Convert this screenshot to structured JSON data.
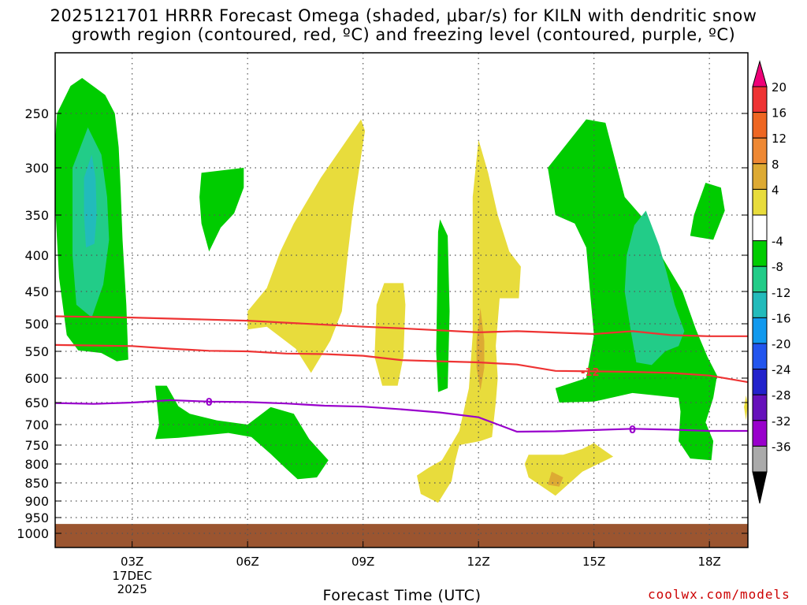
{
  "title_line1": "2025121701 HRRR Forecast Omega (shaded, μbar/s) for KILN with dendritic snow",
  "title_line2": "growth region (contoured, red, ºC) and freezing level (contoured, purple, ºC)",
  "credit": "coolwx.com/models",
  "chart_data": {
    "type": "heatmap",
    "title": "2025121701 HRRR Forecast Omega (shaded, μbar/s) for KILN with dendritic snow growth region (contoured, red, ºC) and freezing level (contoured, purple, ºC)",
    "xlabel": "Forecast Time (UTC)",
    "ylabel": "",
    "x_axis": {
      "range_hours": [
        1,
        19
      ],
      "ticks": [
        {
          "h": 3,
          "label": "03Z",
          "sub": [
            "17DEC",
            "2025"
          ]
        },
        {
          "h": 6,
          "label": "06Z"
        },
        {
          "h": 9,
          "label": "09Z"
        },
        {
          "h": 12,
          "label": "12Z"
        },
        {
          "h": 15,
          "label": "15Z"
        },
        {
          "h": 18,
          "label": "18Z"
        }
      ]
    },
    "y_axis": {
      "unit": "hPa",
      "range": [
        200,
        1030
      ],
      "inverted": true,
      "ticks": [
        250,
        300,
        350,
        400,
        450,
        500,
        550,
        600,
        650,
        700,
        750,
        800,
        850,
        900,
        950,
        1000
      ]
    },
    "grid": true,
    "colorbar": {
      "placement": "right",
      "labels": [
        "20",
        "16",
        "12",
        "8",
        "4",
        "-4",
        "-8",
        "-12",
        "-16",
        "-20",
        "-24",
        "-28",
        "-32",
        "-36"
      ],
      "colors": [
        "#ee0077",
        "#ee3333",
        "#ee6622",
        "#ee8833",
        "#ddaa33",
        "#e8dc3c",
        "#ffffff",
        "#00cc00",
        "#22cc88",
        "#22bbbb",
        "#1199ee",
        "#2255ee",
        "#2222cc",
        "#6611bb",
        "#9900cc",
        "#aaaaaa",
        "#000000"
      ]
    },
    "omega_regions": [
      {
        "name": "green",
        "value": -6,
        "color": "#00cc00",
        "polygons": [
          [
            [
              1.7,
              222
            ],
            [
              2.3,
              235
            ],
            [
              2.55,
              250
            ],
            [
              2.65,
              280
            ],
            [
              2.7,
              320
            ],
            [
              2.75,
              380
            ],
            [
              2.85,
              470
            ],
            [
              2.9,
              565
            ],
            [
              2.6,
              568
            ],
            [
              2.2,
              553
            ],
            [
              1.6,
              548
            ],
            [
              1.3,
              520
            ],
            [
              1.1,
              430
            ],
            [
              0.95,
              300
            ],
            [
              1.05,
              250
            ],
            [
              1.4,
              228
            ]
          ],
          [
            [
              4.8,
              305
            ],
            [
              5.9,
              300
            ],
            [
              5.9,
              320
            ],
            [
              5.65,
              348
            ],
            [
              5.3,
              365
            ],
            [
              5.0,
              395
            ],
            [
              4.8,
              360
            ],
            [
              4.75,
              330
            ]
          ],
          [
            [
              3.6,
              615
            ],
            [
              3.9,
              615
            ],
            [
              4.2,
              658
            ],
            [
              4.5,
              675
            ],
            [
              5.2,
              690
            ],
            [
              6.0,
              700
            ],
            [
              6.6,
              660
            ],
            [
              7.2,
              675
            ],
            [
              7.6,
              735
            ],
            [
              8.1,
              790
            ],
            [
              7.8,
              835
            ],
            [
              7.3,
              840
            ],
            [
              7.0,
              812
            ],
            [
              6.6,
              773
            ],
            [
              6.1,
              730
            ],
            [
              5.5,
              720
            ],
            [
              4.2,
              732
            ],
            [
              3.6,
              735
            ],
            [
              3.7,
              700
            ]
          ],
          [
            [
              10.95,
              370
            ],
            [
              11.0,
              355
            ],
            [
              11.2,
              375
            ],
            [
              11.25,
              480
            ],
            [
              11.2,
              620
            ],
            [
              10.95,
              628
            ],
            [
              10.9,
              550
            ]
          ],
          [
            [
              14.8,
              255
            ],
            [
              15.3,
              258
            ],
            [
              15.8,
              330
            ],
            [
              16.4,
              360
            ],
            [
              16.8,
              405
            ],
            [
              17.3,
              450
            ],
            [
              17.65,
              510
            ],
            [
              17.95,
              560
            ],
            [
              18.2,
              595
            ],
            [
              18.1,
              640
            ],
            [
              17.9,
              695
            ],
            [
              18.1,
              740
            ],
            [
              18.05,
              790
            ],
            [
              17.5,
              785
            ],
            [
              17.2,
              740
            ],
            [
              17.25,
              670
            ],
            [
              17.2,
              640
            ],
            [
              16.0,
              630
            ],
            [
              15.0,
              648
            ],
            [
              14.1,
              650
            ],
            [
              14.0,
              620
            ],
            [
              14.8,
              600
            ],
            [
              15.0,
              520
            ],
            [
              14.9,
              452
            ],
            [
              14.8,
              390
            ],
            [
              14.5,
              360
            ],
            [
              14.0,
              350
            ],
            [
              13.8,
              300
            ]
          ],
          [
            [
              17.9,
              315
            ],
            [
              18.3,
              320
            ],
            [
              18.4,
              345
            ],
            [
              18.1,
              380
            ],
            [
              17.5,
              375
            ],
            [
              17.6,
              350
            ]
          ]
        ]
      },
      {
        "name": "teal",
        "value": -10,
        "color": "#22cc88",
        "polygons": [
          [
            [
              1.85,
              262
            ],
            [
              2.2,
              287
            ],
            [
              2.35,
              330
            ],
            [
              2.4,
              380
            ],
            [
              2.25,
              440
            ],
            [
              1.95,
              490
            ],
            [
              1.55,
              470
            ],
            [
              1.45,
              400
            ],
            [
              1.45,
              300
            ]
          ],
          [
            [
              16.35,
              345
            ],
            [
              16.7,
              388
            ],
            [
              16.9,
              425
            ],
            [
              17.1,
              470
            ],
            [
              17.35,
              513
            ],
            [
              17.2,
              540
            ],
            [
              16.85,
              550
            ],
            [
              16.5,
              575
            ],
            [
              16.1,
              570
            ],
            [
              15.95,
              510
            ],
            [
              15.8,
              450
            ],
            [
              15.85,
              400
            ],
            [
              16.05,
              362
            ]
          ]
        ]
      },
      {
        "name": "cyan",
        "value": -14,
        "color": "#22bbbb",
        "polygons": [
          [
            [
              1.95,
              287
            ],
            [
              2.05,
              310
            ],
            [
              2.08,
              350
            ],
            [
              2.02,
              385
            ],
            [
              1.8,
              390
            ],
            [
              1.75,
              350
            ],
            [
              1.75,
              310
            ]
          ]
        ]
      },
      {
        "name": "yellow",
        "value": 6,
        "color": "#e8dc3c",
        "polygons": [
          [
            [
              8.95,
              255
            ],
            [
              9.05,
              265
            ],
            [
              8.75,
              340
            ],
            [
              8.6,
              400
            ],
            [
              8.45,
              480
            ],
            [
              8.15,
              530
            ],
            [
              7.65,
              590
            ],
            [
              7.25,
              545
            ],
            [
              6.5,
              505
            ],
            [
              6.0,
              510
            ],
            [
              6.0,
              480
            ],
            [
              6.5,
              445
            ],
            [
              6.85,
              395
            ],
            [
              7.2,
              360
            ],
            [
              7.9,
              310
            ]
          ],
          [
            [
              10.05,
              438
            ],
            [
              10.1,
              470
            ],
            [
              10.05,
              560
            ],
            [
              9.9,
              615
            ],
            [
              9.5,
              615
            ],
            [
              9.3,
              560
            ],
            [
              9.35,
              470
            ],
            [
              9.55,
              438
            ]
          ],
          [
            [
              12.0,
              273
            ],
            [
              12.25,
              305
            ],
            [
              12.5,
              350
            ],
            [
              12.8,
              395
            ],
            [
              13.1,
              415
            ],
            [
              13.05,
              460
            ],
            [
              12.55,
              460
            ],
            [
              12.45,
              540
            ],
            [
              12.5,
              600
            ],
            [
              12.45,
              650
            ],
            [
              12.35,
              730
            ],
            [
              12.05,
              740
            ],
            [
              11.5,
              750
            ],
            [
              11.4,
              790
            ],
            [
              11.3,
              845
            ],
            [
              10.95,
              905
            ],
            [
              10.5,
              880
            ],
            [
              10.4,
              830
            ],
            [
              10.7,
              810
            ],
            [
              11.05,
              790
            ],
            [
              11.5,
              715
            ],
            [
              11.75,
              620
            ],
            [
              11.85,
              520
            ],
            [
              11.85,
              420
            ],
            [
              11.85,
              330
            ]
          ],
          [
            [
              13.3,
              775
            ],
            [
              14.2,
              775
            ],
            [
              14.7,
              760
            ],
            [
              15.0,
              745
            ],
            [
              15.5,
              780
            ],
            [
              14.7,
              820
            ],
            [
              14.0,
              885
            ],
            [
              13.3,
              835
            ],
            [
              13.2,
              800
            ]
          ],
          [
            [
              18.95,
              635
            ],
            [
              19.0,
              655
            ],
            [
              18.95,
              690
            ],
            [
              18.9,
              660
            ]
          ]
        ]
      },
      {
        "name": "gold",
        "value": 10,
        "color": "#ddaa33",
        "polygons": [
          [
            [
              12.05,
              475
            ],
            [
              12.15,
              530
            ],
            [
              12.15,
              580
            ],
            [
              12.05,
              625
            ],
            [
              11.95,
              580
            ],
            [
              11.95,
              530
            ]
          ],
          [
            [
              13.9,
              820
            ],
            [
              14.2,
              835
            ],
            [
              14.1,
              860
            ],
            [
              13.8,
              855
            ]
          ]
        ]
      }
    ],
    "contours": [
      {
        "name": "-12 ºC top (dendritic growth region)",
        "color": "#ee3333",
        "points": [
          [
            1,
            488
          ],
          [
            3,
            490
          ],
          [
            6,
            495
          ],
          [
            9,
            505
          ],
          [
            10,
            508
          ],
          [
            12,
            515
          ],
          [
            13,
            513
          ],
          [
            15,
            518
          ],
          [
            16,
            513
          ],
          [
            17,
            520
          ],
          [
            18,
            522
          ],
          [
            19,
            522
          ]
        ]
      },
      {
        "name": "-12 ºC bottom (dendritic growth region)",
        "color": "#ee3333",
        "label": "-12",
        "label_at": [
          14.9,
          588
        ],
        "points": [
          [
            1,
            538
          ],
          [
            3,
            540
          ],
          [
            4,
            545
          ],
          [
            5,
            549
          ],
          [
            6,
            550
          ],
          [
            7,
            554
          ],
          [
            8,
            555
          ],
          [
            9,
            558
          ],
          [
            10,
            566
          ],
          [
            11,
            568
          ],
          [
            12,
            570
          ],
          [
            13,
            574
          ],
          [
            14,
            586
          ],
          [
            15,
            587
          ],
          [
            16,
            588
          ],
          [
            17,
            590
          ],
          [
            18,
            595
          ],
          [
            19,
            608
          ]
        ]
      },
      {
        "name": "0 ºC freezing level",
        "color": "#9900cc",
        "label": "0",
        "label_pts": [
          [
            5,
            648
          ],
          [
            16,
            711
          ]
        ],
        "points": [
          [
            1,
            651
          ],
          [
            2,
            653
          ],
          [
            3,
            650
          ],
          [
            4,
            645
          ],
          [
            5,
            648
          ],
          [
            6,
            649
          ],
          [
            7,
            652
          ],
          [
            8,
            657
          ],
          [
            9,
            659
          ],
          [
            10,
            665
          ],
          [
            11,
            672
          ],
          [
            12,
            683
          ],
          [
            13,
            717
          ],
          [
            14,
            716
          ],
          [
            15,
            713
          ],
          [
            16,
            710
          ],
          [
            17,
            712
          ],
          [
            18,
            715
          ],
          [
            19,
            715
          ]
        ]
      }
    ],
    "ground_band": {
      "color": "#9b5530",
      "from": 970,
      "to": 1030
    }
  }
}
